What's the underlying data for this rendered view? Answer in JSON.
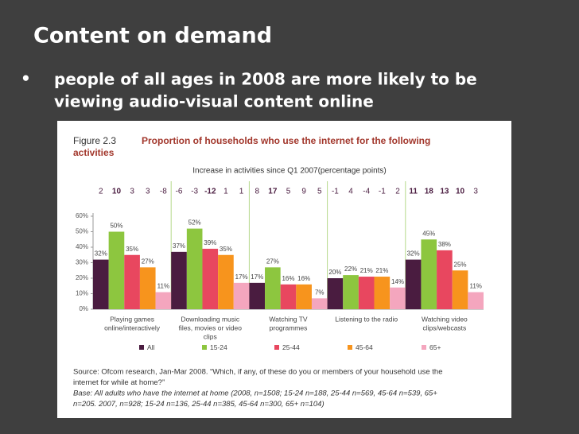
{
  "slide": {
    "title": "Content on demand",
    "bullet_lines": [
      "people of all ages in 2008 are more likely to be",
      "viewing audio-visual content online"
    ]
  },
  "chart_data": {
    "type": "bar",
    "figure_label": "Figure 2.3",
    "title_lines": [
      "Proportion of households who use the internet for the following",
      "activities"
    ],
    "subtitle": "Increase in activities since Q1 2007(percentage points)",
    "categories": [
      [
        "Playing games",
        "online/interactively"
      ],
      [
        "Downloading music",
        "files, movies or video",
        "clips"
      ],
      [
        "Watching TV",
        "programmes"
      ],
      [
        "Listening to the radio"
      ],
      [
        "Watching video",
        "clips/webcasts"
      ]
    ],
    "increases": [
      [
        2,
        10,
        3,
        3,
        -8
      ],
      [
        -6,
        -3,
        -12,
        1,
        1
      ],
      [
        8,
        17,
        5,
        9,
        5
      ],
      [
        -1,
        4,
        -4,
        -1,
        2
      ],
      [
        11,
        18,
        13,
        10,
        3
      ]
    ],
    "increase_bold": [
      [
        false,
        true,
        false,
        false,
        false
      ],
      [
        false,
        false,
        true,
        false,
        false
      ],
      [
        false,
        true,
        false,
        false,
        false
      ],
      [
        false,
        false,
        false,
        false,
        false
      ],
      [
        true,
        true,
        true,
        true,
        false
      ]
    ],
    "series": [
      {
        "name": "All",
        "color": "#4a1c40",
        "values": [
          32,
          37,
          17,
          20,
          32
        ],
        "value_labels": [
          "32%",
          "37%",
          "17%",
          "20%",
          "32%"
        ]
      },
      {
        "name": "15-24",
        "color": "#8dc63f",
        "values": [
          50,
          52,
          27,
          22,
          45
        ],
        "value_labels": [
          "50%",
          "52%",
          "27%",
          "22%",
          "45%"
        ]
      },
      {
        "name": "25-44",
        "color": "#e8475f",
        "values": [
          35,
          39,
          16,
          21,
          38
        ],
        "value_labels": [
          "35%",
          "39%",
          "16%",
          "21%",
          "38%"
        ]
      },
      {
        "name": "45-64",
        "color": "#f7941d",
        "values": [
          27,
          35,
          16,
          21,
          25
        ],
        "value_labels": [
          "27%",
          "35%",
          "16%",
          "21%",
          "25%"
        ]
      },
      {
        "name": "65+",
        "color": "#f4a6be",
        "values": [
          11,
          17,
          7,
          14,
          11
        ],
        "value_labels": [
          "11%",
          "17%",
          "7%",
          "14%",
          "11%"
        ]
      }
    ],
    "ylim": [
      0,
      60
    ],
    "yticks": [
      {
        "value": 0,
        "label": "0%"
      },
      {
        "value": 10,
        "label": "10%"
      },
      {
        "value": 20,
        "label": "20%"
      },
      {
        "value": 30,
        "label": "30%"
      },
      {
        "value": 40,
        "label": "40%"
      },
      {
        "value": 50,
        "label": "50%"
      },
      {
        "value": 60,
        "label": "60%"
      }
    ],
    "grid": false,
    "source_lines": [
      "Source: Ofcom research, Jan-Mar 2008. “Which, if any, of these do you or members of your household use the",
      "internet for while at home?”",
      "Base: All adults who have the internet at home (2008, n=1508; 15-24 n=188, 25-44 n=569, 45-64 n=539, 65+",
      "n=205. 2007, n=928; 15-24 n=136, 25-44 n=385, 45-64 n=300, 65+ n=104)"
    ]
  }
}
